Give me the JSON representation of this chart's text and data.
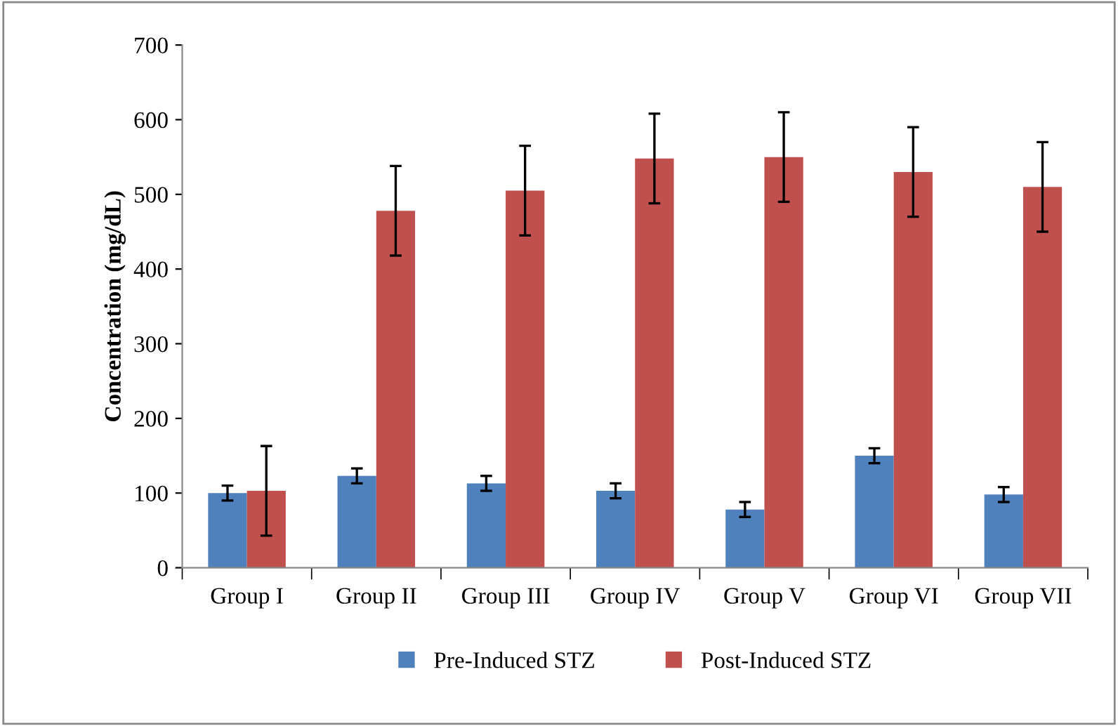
{
  "chart_data": {
    "type": "bar",
    "ylabel": "Concentration (mg/dL)",
    "categories": [
      "Group I",
      "Group II",
      "Group III",
      "Group IV",
      "Group V",
      "Group VI",
      "Group VII"
    ],
    "series": [
      {
        "name": "Pre-Induced STZ",
        "color": "#4f81bd",
        "values": [
          100,
          123,
          113,
          103,
          78,
          150,
          98
        ],
        "errors": [
          10,
          10,
          10,
          10,
          10,
          10,
          10
        ]
      },
      {
        "name": "Post-Induced STZ",
        "color": "#c0504d",
        "values": [
          103,
          478,
          505,
          548,
          550,
          530,
          510
        ],
        "errors": [
          60,
          60,
          60,
          60,
          60,
          60,
          60
        ]
      }
    ],
    "ylim": [
      0,
      700
    ],
    "yticks": [
      0,
      100,
      200,
      300,
      400,
      500,
      600,
      700
    ],
    "grid": false,
    "legend": "bottom"
  }
}
